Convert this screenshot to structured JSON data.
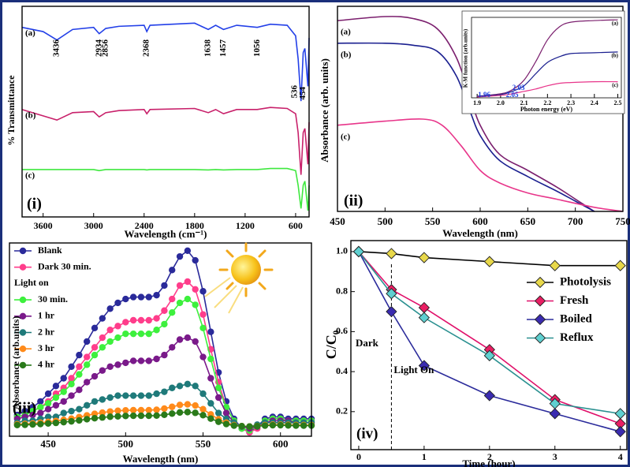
{
  "chart_data": [
    {
      "type": "line",
      "panel_label": "(i)",
      "x_label": "Wavelength (cm⁻¹)",
      "y_label": "% Transmittance",
      "xlim": [
        3850,
        440
      ],
      "ylim": [
        0,
        100
      ],
      "xticks": [
        3600,
        3000,
        2400,
        1800,
        1200,
        600
      ],
      "name_position": "start",
      "series": [
        {
          "name": "(a)",
          "color": "#2340e8",
          "x": [
            3850,
            3600,
            3436,
            3250,
            3000,
            2934,
            2856,
            2700,
            2400,
            2368,
            2330,
            1800,
            1638,
            1550,
            1457,
            1300,
            1056,
            900,
            700,
            600,
            570,
            536,
            510,
            490,
            454,
            440
          ],
          "values": [
            90,
            88,
            84,
            89,
            90,
            87,
            89.5,
            90.5,
            91,
            88,
            91,
            92,
            89,
            91,
            89,
            91,
            90,
            91.5,
            91,
            86,
            75,
            55,
            78,
            80,
            62,
            85
          ]
        },
        {
          "name": "(b)",
          "color": "#c8206a",
          "x": [
            3850,
            3600,
            3436,
            3250,
            3000,
            2934,
            2856,
            2700,
            2400,
            2368,
            2330,
            1800,
            1638,
            1550,
            1457,
            1300,
            1056,
            900,
            700,
            600,
            570,
            536,
            510,
            490,
            454,
            440
          ],
          "values": [
            51,
            48,
            46,
            49.5,
            50,
            47.5,
            49.5,
            50.5,
            51,
            49,
            51,
            51.5,
            49.5,
            51,
            49,
            51,
            51,
            52,
            51.5,
            49,
            40,
            20,
            40,
            42,
            25,
            45
          ]
        },
        {
          "name": "(c)",
          "color": "#3ee83e",
          "x": [
            3850,
            3600,
            3436,
            3250,
            3000,
            2934,
            2856,
            2700,
            2400,
            2368,
            2330,
            1800,
            1638,
            1550,
            1457,
            1300,
            1056,
            900,
            700,
            600,
            570,
            536,
            510,
            490,
            454,
            440
          ],
          "values": [
            22.5,
            22.5,
            22.5,
            22.5,
            22.5,
            22,
            22.5,
            22.5,
            22.5,
            22.3,
            22.5,
            22.5,
            22.3,
            22.5,
            22.3,
            22.5,
            22.5,
            23,
            23,
            22,
            15,
            4,
            15,
            17,
            3,
            15
          ]
        }
      ],
      "annotations": [
        {
          "text": "3436",
          "x": 3436
        },
        {
          "text": "2934",
          "x": 2934
        },
        {
          "text": "2856",
          "x": 2856
        },
        {
          "text": "2368",
          "x": 2368
        },
        {
          "text": "1638",
          "x": 1638
        },
        {
          "text": "1457",
          "x": 1457
        },
        {
          "text": "1056",
          "x": 1056
        },
        {
          "text": "536",
          "x": 536
        },
        {
          "text": "454",
          "x": 454
        }
      ]
    },
    {
      "type": "line",
      "panel_label": "(ii)",
      "x_label": "Wavelength (nm)",
      "y_label": "Absorbance (arb. units)",
      "xlim": [
        450,
        750
      ],
      "ylim": [
        0,
        100
      ],
      "xticks": [
        450,
        500,
        550,
        600,
        650,
        700,
        750
      ],
      "name_position": "start",
      "smooth": true,
      "series": [
        {
          "name": "(a)",
          "color": "#7b1f6e",
          "x": [
            450,
            500,
            530,
            555,
            575,
            590,
            600,
            620,
            650,
            680,
            700,
            720
          ],
          "values": [
            93,
            95,
            94,
            89,
            75,
            55,
            42,
            28,
            20,
            12,
            6,
            0
          ]
        },
        {
          "name": "(b)",
          "color": "#1a1f8f",
          "x": [
            450,
            500,
            530,
            555,
            575,
            590,
            600,
            620,
            650,
            680,
            700,
            720
          ],
          "values": [
            82,
            82,
            81,
            78,
            66,
            48,
            37,
            25,
            17,
            10,
            5,
            0
          ]
        },
        {
          "name": "(c)",
          "color": "#e8358a",
          "x": [
            450,
            500,
            540,
            560,
            580,
            600,
            620,
            650,
            680,
            720,
            750
          ],
          "values": [
            42,
            44,
            45,
            42,
            32,
            20,
            14,
            9,
            6,
            2,
            0
          ]
        }
      ]
    },
    {
      "type": "line",
      "x_label": "Photon energy (eV)",
      "y_label": "K-M function (arb.units)",
      "xlim": [
        1.876,
        2.515
      ],
      "ylim": [
        0,
        100
      ],
      "xticks": [
        1.9,
        {
          "value": 2,
          "label": "2.0"
        },
        2.1,
        2.2,
        2.3,
        2.4,
        2.5
      ],
      "name_position": "end",
      "smooth": true,
      "series": [
        {
          "name": "(a)",
          "color": "#7b1f6e",
          "x": [
            1.9,
            2.0,
            2.05,
            2.1,
            2.15,
            2.2,
            2.25,
            2.3,
            2.4,
            2.5
          ],
          "values": [
            2,
            5,
            10,
            22,
            45,
            72,
            88,
            94,
            96,
            97
          ]
        },
        {
          "name": "(b)",
          "color": "#1a1f8f",
          "x": [
            1.9,
            2.0,
            2.05,
            2.1,
            2.15,
            2.2,
            2.25,
            2.3,
            2.4,
            2.5
          ],
          "values": [
            2,
            4,
            8,
            15,
            30,
            44,
            51,
            55,
            56,
            57
          ]
        },
        {
          "name": "(c)",
          "color": "#e8358a",
          "x": [
            1.9,
            2.0,
            2.05,
            2.1,
            2.15,
            2.2,
            2.25,
            2.3,
            2.4,
            2.5
          ],
          "values": [
            1,
            3,
            5,
            8,
            11,
            15,
            18,
            19,
            20,
            20
          ]
        }
      ],
      "annotation_color": "#1a3fe0",
      "annotations": [
        {
          "text": "1.96",
          "x": 1.96
        },
        {
          "text": "2.03",
          "x": 2.03
        },
        {
          "text": "2.05",
          "x": 2.05
        }
      ]
    },
    {
      "type": "line",
      "panel_label": "(iii)",
      "x_label": "Wavelength (nm)",
      "y_label": "Absorbance (arb.units)",
      "xlim": [
        425,
        620
      ],
      "ylim": [
        0,
        100
      ],
      "xticks": [
        450,
        500,
        550,
        600
      ],
      "marker": "circle",
      "legend": "upper left",
      "legend_subtitle": "Light on",
      "x": [
        430,
        435,
        440,
        445,
        450,
        455,
        460,
        465,
        470,
        475,
        480,
        485,
        490,
        495,
        500,
        505,
        510,
        515,
        520,
        525,
        530,
        535,
        540,
        545,
        550,
        555,
        560,
        565,
        570,
        575,
        580,
        585,
        590,
        595,
        600,
        605,
        610,
        615,
        620
      ],
      "series": [
        {
          "name": "Blank",
          "color": "#2a2a9a",
          "values": [
            11,
            13,
            15,
            18,
            22,
            26,
            30,
            36,
            42,
            49,
            56,
            61,
            66,
            69,
            71,
            72,
            72,
            72,
            73,
            78,
            86,
            93,
            96,
            91,
            75,
            54,
            33,
            18,
            9,
            4,
            2,
            5,
            9,
            10,
            10,
            9,
            9,
            9,
            9
          ]
        },
        {
          "name": "Dark 30 min.",
          "color": "#ff3d8b",
          "values": [
            10,
            11,
            13,
            15,
            18,
            22,
            25,
            30,
            36,
            41,
            46,
            51,
            55,
            57,
            59,
            60,
            60,
            60,
            61,
            65,
            71,
            78,
            80,
            76,
            63,
            45,
            28,
            15,
            8,
            4,
            2,
            4,
            8,
            9,
            9,
            8,
            8,
            8,
            8
          ]
        },
        {
          "name": "30 min.",
          "color": "#3df03d",
          "values": [
            10,
            11,
            13,
            15,
            17,
            20,
            23,
            27,
            32,
            37,
            42,
            46,
            49,
            51,
            53,
            53,
            53,
            53,
            55,
            58,
            64,
            69,
            71,
            68,
            56,
            40,
            25,
            15,
            8,
            4,
            3,
            5,
            8,
            9,
            9,
            8,
            8,
            8,
            8
          ]
        },
        {
          "name": "1 hr",
          "color": "#7a1a8a",
          "values": [
            9,
            10,
            11,
            12,
            14,
            16,
            18,
            21,
            24,
            28,
            31,
            34,
            36,
            37,
            38,
            39,
            39,
            39,
            40,
            42,
            46,
            50,
            51,
            49,
            41,
            30,
            20,
            12,
            7,
            5,
            4,
            5,
            7,
            8,
            8,
            8,
            7,
            7,
            7
          ]
        },
        {
          "name": "2 hr",
          "color": "#1f7a7a",
          "values": [
            7,
            8,
            8,
            9,
            10,
            10,
            12,
            13,
            14,
            16,
            18,
            19,
            20,
            21,
            21,
            21,
            21,
            21,
            22,
            23,
            25,
            26,
            27,
            26,
            22,
            17,
            12,
            9,
            7,
            5,
            5,
            6,
            7,
            7,
            7,
            7,
            7,
            7,
            7
          ]
        },
        {
          "name": "3 hr",
          "color": "#ff8a1a",
          "values": [
            6.2,
            6.4,
            6.6,
            7,
            7.4,
            7.9,
            8.5,
            9.1,
            9.9,
            10.8,
            11.6,
            12.2,
            12.8,
            13.2,
            13.4,
            13.5,
            13.5,
            13.5,
            13.7,
            14.3,
            15.2,
            16.2,
            16.5,
            15.9,
            14,
            11.3,
            8.8,
            7,
            5.8,
            5.2,
            5,
            5.3,
            5.8,
            6,
            6,
            5.9,
            5.8,
            5.8,
            5.8
          ]
        },
        {
          "name": "4 hr",
          "color": "#2a7a1a",
          "values": [
            5.8,
            5.9,
            6.1,
            6.3,
            6.6,
            6.9,
            7.3,
            7.7,
            8.2,
            8.8,
            9.3,
            9.7,
            10.1,
            10.3,
            10.5,
            10.6,
            10.6,
            10.6,
            10.7,
            11.1,
            11.7,
            12.3,
            12.5,
            12.1,
            10.9,
            9.1,
            7.5,
            6.3,
            5.5,
            5.2,
            5,
            5.2,
            5.5,
            5.7,
            5.7,
            5.6,
            5.5,
            5.5,
            5.5
          ]
        }
      ]
    },
    {
      "type": "line",
      "panel_label": "(iv)",
      "x_label": "Time (hour)",
      "y_label": "C/C₀",
      "xlim": [
        -0.12,
        4.1
      ],
      "ylim": [
        0.01,
        1.055
      ],
      "xticks": [
        0,
        1,
        2,
        3,
        4
      ],
      "yticks": [
        0.2,
        0.4,
        0.6,
        0.8,
        {
          "value": 1,
          "label": "1.0"
        }
      ],
      "marker": "diamond",
      "legend": "right",
      "vline_x": 0.5,
      "x": [
        0,
        0.5,
        1,
        2,
        3,
        4
      ],
      "series": [
        {
          "name": "Photolysis",
          "color": "#000000",
          "marker_color": "#e8d84a",
          "values": [
            1,
            0.99,
            0.97,
            0.95,
            0.93,
            0.93
          ]
        },
        {
          "name": "Fresh",
          "color": "#e0106a",
          "marker_color": "#e91e63",
          "values": [
            1,
            0.81,
            0.72,
            0.51,
            0.26,
            0.14
          ]
        },
        {
          "name": "Boiled",
          "color": "#2b2b9b",
          "marker_color": "#3a2bb0",
          "values": [
            1,
            0.7,
            0.43,
            0.28,
            0.19,
            0.1
          ]
        },
        {
          "name": "Reflux",
          "color": "#2a9090",
          "marker_color": "#5fd0d0",
          "values": [
            1,
            0.79,
            0.67,
            0.48,
            0.24,
            0.19
          ]
        }
      ],
      "annotations": [
        {
          "text": "Dark",
          "x": 0
        },
        {
          "text": "Light On",
          "x": 0.5
        }
      ]
    }
  ]
}
